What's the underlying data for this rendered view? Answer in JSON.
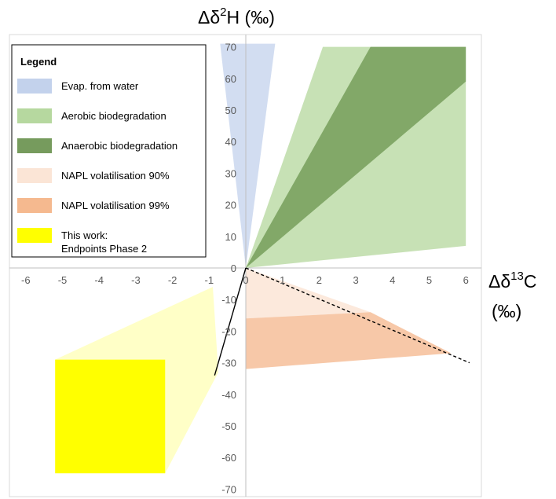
{
  "chart_data": {
    "type": "area",
    "title": "",
    "xlabel": "Δδ13C (‰)",
    "ylabel": "Δδ2H (‰)",
    "xlabel_parts": {
      "prefix": "Δδ",
      "sup": "13",
      "main": "C",
      "unit": "(‰)"
    },
    "ylabel_parts": {
      "prefix": "Δδ",
      "sup": "2",
      "main": "H",
      "unit": "(‰)"
    },
    "xlim": [
      -6,
      6
    ],
    "ylim": [
      -70,
      70
    ],
    "x_ticks": [
      -6,
      -5,
      -4,
      -3,
      -2,
      -1,
      0,
      1,
      2,
      3,
      4,
      5,
      6
    ],
    "y_ticks": [
      -70,
      -60,
      -50,
      -40,
      -30,
      -20,
      -10,
      0,
      10,
      20,
      30,
      40,
      50,
      60,
      70
    ],
    "grid": false,
    "legend_position": "top-left",
    "legend_title": "Legend",
    "series": [
      {
        "name": "Evap. from water",
        "color": "#b4c7e7",
        "opacity": 0.6,
        "polygon": [
          [
            0,
            0
          ],
          [
            -0.7,
            71
          ],
          [
            0.8,
            71
          ]
        ]
      },
      {
        "name": "Aerobic biodegradation",
        "color": "#a9d18e",
        "opacity": 0.65,
        "polygon": [
          [
            0,
            0
          ],
          [
            2.1,
            70
          ],
          [
            6,
            70
          ],
          [
            6,
            7
          ]
        ]
      },
      {
        "name": "Anaerobic biodegradation",
        "color": "#548235",
        "opacity": 0.6,
        "polygon": [
          [
            0,
            0
          ],
          [
            3.4,
            70
          ],
          [
            6,
            70
          ],
          [
            6,
            59
          ]
        ]
      },
      {
        "name": "NAPL volatilisation 90%",
        "color": "#fbe5d6",
        "opacity": 0.85,
        "polygon": [
          [
            0,
            0
          ],
          [
            0,
            -16
          ],
          [
            3.4,
            -14
          ]
        ]
      },
      {
        "name": "NAPL volatilisation 99%",
        "color": "#f4b183",
        "opacity": 0.7,
        "polygon": [
          [
            0,
            -16
          ],
          [
            3.4,
            -14
          ],
          [
            5.6,
            -27
          ],
          [
            0,
            -32
          ]
        ]
      },
      {
        "name": "This work: Endpoints Phase 2",
        "name_lines": [
          "This work:",
          "Endpoints Phase 2"
        ],
        "color": "#ffff00",
        "opacity": 1,
        "polygon": [
          [
            -5.2,
            -29
          ],
          [
            -2.2,
            -29
          ],
          [
            -2.2,
            -65
          ],
          [
            -5.2,
            -65
          ]
        ]
      }
    ],
    "fan_region": {
      "color": "#ffff99",
      "opacity": 0.55,
      "polygon": [
        [
          -0.9,
          -6
        ],
        [
          -0.75,
          -33
        ],
        [
          -2.2,
          -65
        ],
        [
          -2.2,
          -29
        ],
        [
          -5.2,
          -29
        ]
      ]
    },
    "lines": [
      {
        "style": "solid",
        "color": "#000000",
        "points": [
          [
            0,
            0
          ],
          [
            -0.85,
            -34
          ]
        ]
      },
      {
        "style": "dashed",
        "color": "#000000",
        "points": [
          [
            0,
            0
          ],
          [
            6.1,
            -30
          ]
        ]
      }
    ]
  }
}
